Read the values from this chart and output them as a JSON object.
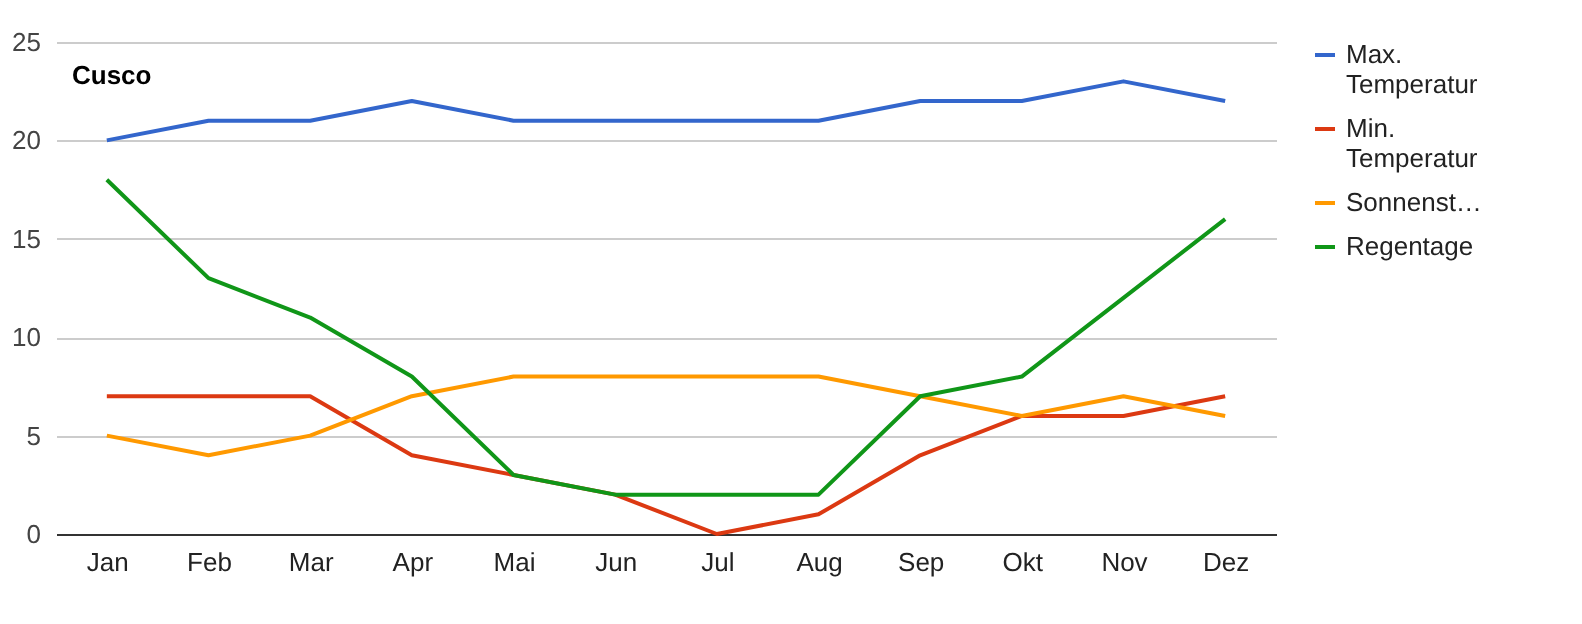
{
  "chart_data": {
    "type": "line",
    "title": "Cusco",
    "categories": [
      "Jan",
      "Feb",
      "Mar",
      "Apr",
      "Mai",
      "Jun",
      "Jul",
      "Aug",
      "Sep",
      "Okt",
      "Nov",
      "Dez"
    ],
    "series": [
      {
        "name": "Max. Temperatur",
        "color": "#3366cc",
        "values": [
          20,
          21,
          21,
          22,
          21,
          21,
          21,
          21,
          22,
          22,
          23,
          22
        ]
      },
      {
        "name": "Min. Temperatur",
        "color": "#dc3912",
        "values": [
          7,
          7,
          7,
          4,
          3,
          2,
          0,
          1,
          4,
          6,
          6,
          7
        ]
      },
      {
        "name": "Sonnenst…",
        "color": "#ff9900",
        "values": [
          5,
          4,
          5,
          7,
          8,
          8,
          8,
          8,
          7,
          6,
          7,
          6
        ]
      },
      {
        "name": "Regentage",
        "color": "#109618",
        "values": [
          18,
          13,
          11,
          8,
          3,
          2,
          2,
          2,
          7,
          8,
          12,
          16
        ]
      }
    ],
    "ylim": [
      0,
      25
    ],
    "yticks": [
      0,
      5,
      10,
      15,
      20,
      25
    ],
    "grid": "y",
    "legend": "top right",
    "marker": "none",
    "line_style": "solid"
  }
}
